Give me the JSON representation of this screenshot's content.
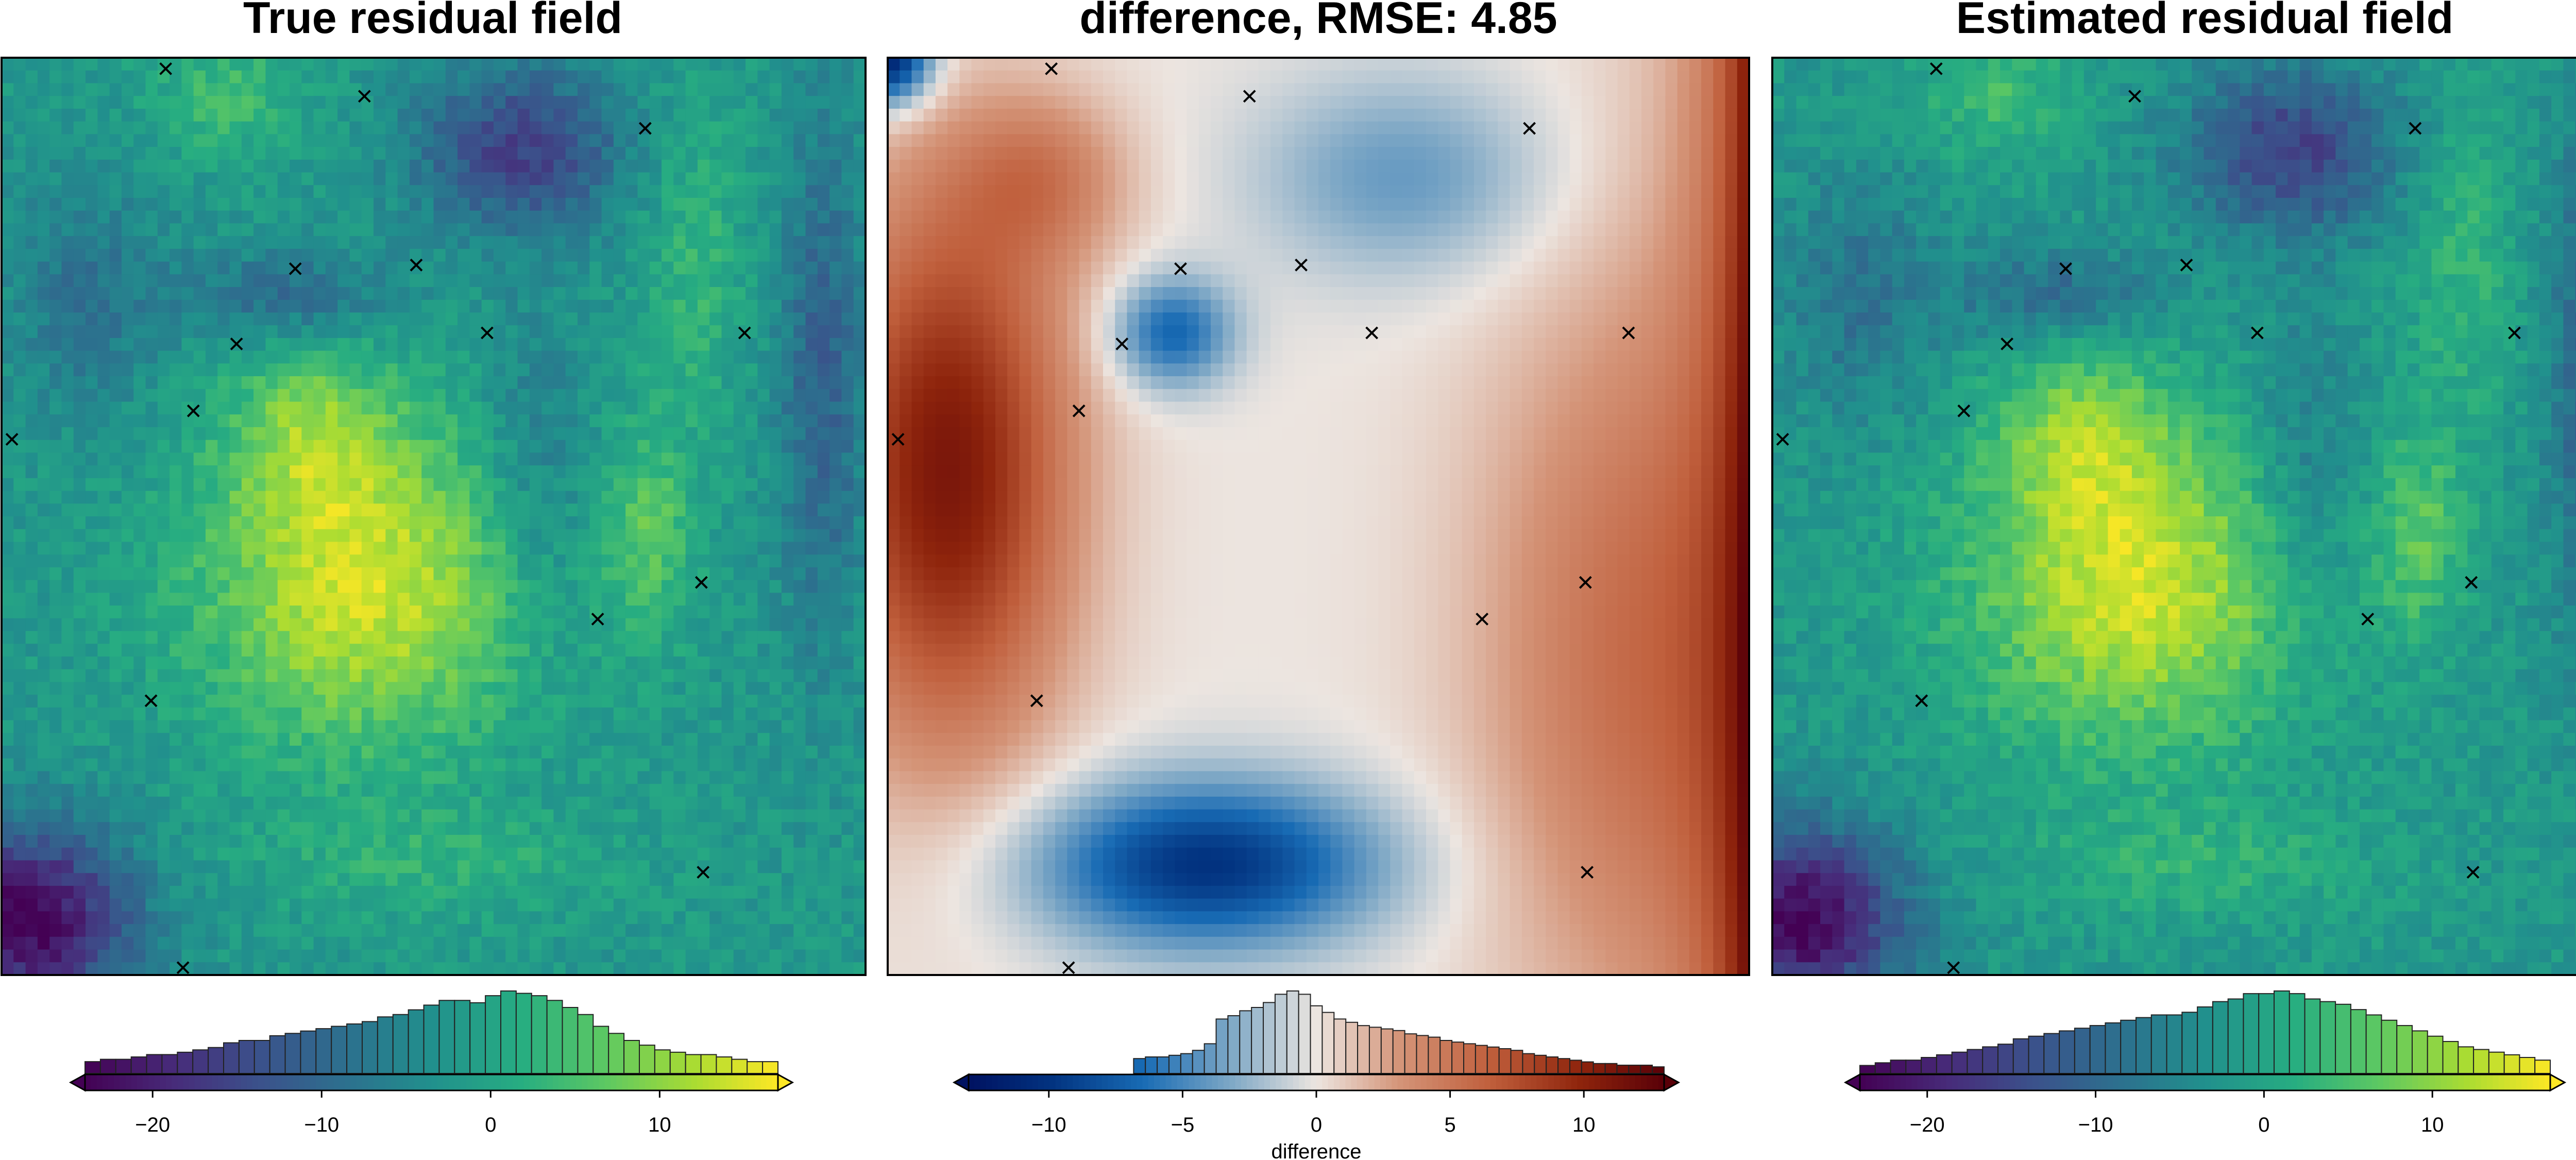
{
  "chart_data": [
    {
      "type": "heatmap",
      "title": "True residual field",
      "colormap": "viridis",
      "value_range": [
        -24,
        17
      ],
      "markers": [
        [
          0.19,
          0.012
        ],
        [
          0.42,
          0.042
        ],
        [
          0.745,
          0.077
        ],
        [
          0.34,
          0.23
        ],
        [
          0.48,
          0.226
        ],
        [
          0.272,
          0.312
        ],
        [
          0.562,
          0.3
        ],
        [
          0.86,
          0.3
        ],
        [
          0.222,
          0.385
        ],
        [
          0.012,
          0.416
        ],
        [
          0.81,
          0.572
        ],
        [
          0.69,
          0.612
        ],
        [
          0.173,
          0.701
        ],
        [
          0.812,
          0.888
        ],
        [
          0.21,
          0.992
        ]
      ],
      "colorbar": {
        "range": [
          -24,
          17
        ],
        "ticks": [
          -20,
          -10,
          0,
          10
        ],
        "tick_labels": [
          "−20",
          "−10",
          "0",
          "10"
        ],
        "label": "",
        "histogram": [
          5,
          6,
          6,
          7,
          8,
          8,
          9,
          10,
          11,
          13,
          14,
          14,
          16,
          17,
          18,
          19,
          20,
          21,
          22,
          24,
          25,
          27,
          29,
          31,
          31,
          30,
          33,
          35,
          34,
          33,
          31,
          28,
          25,
          20,
          17,
          14,
          12,
          10,
          9,
          8,
          8,
          7,
          6,
          5,
          5
        ]
      }
    },
    {
      "type": "heatmap",
      "title": "difference, RMSE: 4.85",
      "colormap": "vik",
      "value_range": [
        -13,
        13
      ],
      "markers": [
        [
          0.19,
          0.012
        ],
        [
          0.42,
          0.042
        ],
        [
          0.745,
          0.077
        ],
        [
          0.34,
          0.23
        ],
        [
          0.48,
          0.226
        ],
        [
          0.272,
          0.312
        ],
        [
          0.562,
          0.3
        ],
        [
          0.86,
          0.3
        ],
        [
          0.222,
          0.385
        ],
        [
          0.012,
          0.416
        ],
        [
          0.81,
          0.572
        ],
        [
          0.69,
          0.612
        ],
        [
          0.173,
          0.701
        ],
        [
          0.812,
          0.888
        ],
        [
          0.21,
          0.992
        ]
      ],
      "colorbar": {
        "range": [
          -13,
          13
        ],
        "ticks": [
          -10,
          -5,
          0,
          5,
          10
        ],
        "tick_labels": [
          "−10",
          "−5",
          "0",
          "5",
          "10"
        ],
        "label": "difference",
        "histogram": [
          0,
          0,
          0,
          0,
          0,
          0,
          0,
          0,
          0,
          0,
          0,
          0,
          0,
          0,
          9,
          10,
          10,
          11,
          12,
          14,
          18,
          33,
          35,
          38,
          40,
          43,
          48,
          50,
          48,
          41,
          37,
          33,
          31,
          29,
          28,
          27,
          26,
          24,
          23,
          22,
          20,
          19,
          18,
          17,
          16,
          15,
          14,
          12,
          11,
          10,
          9,
          8,
          7,
          6,
          6,
          5,
          5,
          5,
          4
        ]
      }
    },
    {
      "type": "heatmap",
      "title": "Estimated residual field",
      "colormap": "viridis",
      "value_range": [
        -24,
        17
      ],
      "markers": [
        [
          0.19,
          0.012
        ],
        [
          0.42,
          0.042
        ],
        [
          0.745,
          0.077
        ],
        [
          0.34,
          0.23
        ],
        [
          0.48,
          0.226
        ],
        [
          0.272,
          0.312
        ],
        [
          0.562,
          0.3
        ],
        [
          0.86,
          0.3
        ],
        [
          0.222,
          0.385
        ],
        [
          0.012,
          0.416
        ],
        [
          0.81,
          0.572
        ],
        [
          0.69,
          0.612
        ],
        [
          0.173,
          0.701
        ],
        [
          0.812,
          0.888
        ],
        [
          0.21,
          0.992
        ]
      ],
      "colorbar": {
        "range": [
          -24,
          17
        ],
        "ticks": [
          -20,
          -10,
          0,
          10
        ],
        "tick_labels": [
          "−20",
          "−10",
          "0",
          "10"
        ],
        "label": "",
        "histogram": [
          3,
          4,
          5,
          5,
          6,
          7,
          8,
          9,
          10,
          11,
          13,
          14,
          15,
          16,
          17,
          18,
          19,
          20,
          21,
          22,
          22,
          23,
          25,
          27,
          28,
          30,
          30,
          31,
          30,
          28,
          27,
          26,
          24,
          22,
          20,
          18,
          16,
          14,
          12,
          10,
          9,
          8,
          7,
          6,
          5
        ]
      }
    }
  ]
}
